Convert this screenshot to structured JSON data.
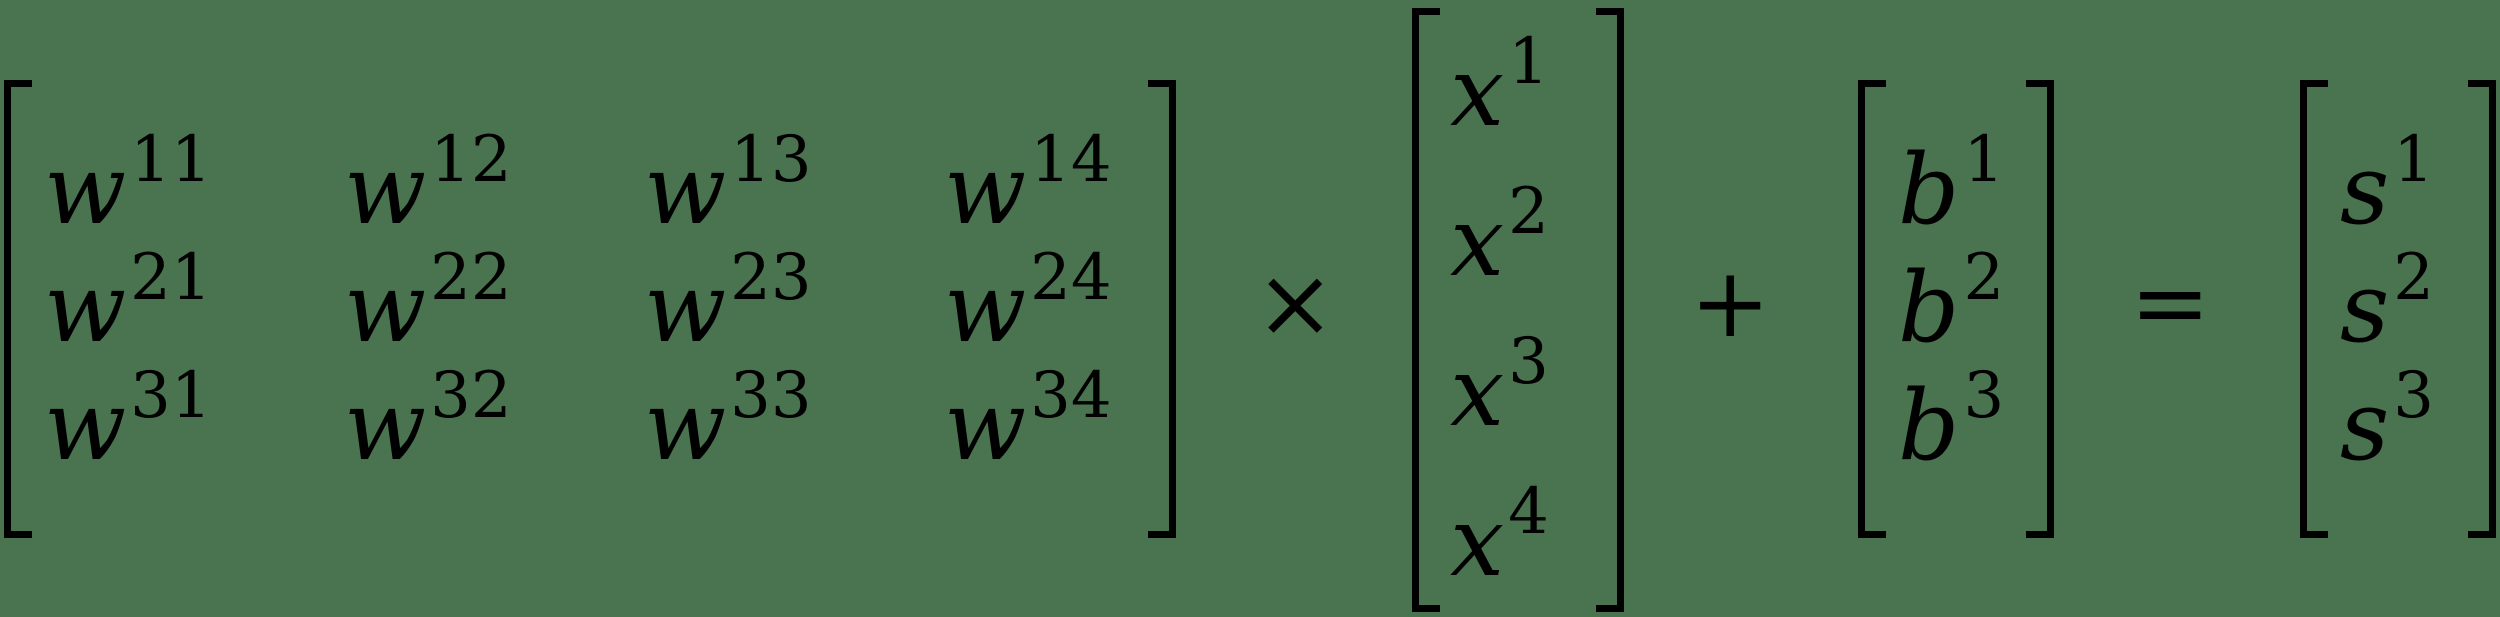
{
  "equation": {
    "weights": {
      "symbol": "w",
      "rows": [
        [
          "11",
          "12",
          "13",
          "14"
        ],
        [
          "21",
          "22",
          "23",
          "24"
        ],
        [
          "31",
          "32",
          "33",
          "34"
        ]
      ]
    },
    "times_operator": "×",
    "inputs": {
      "symbol": "x",
      "rows": [
        "1",
        "2",
        "3",
        "4"
      ]
    },
    "plus_operator": "+",
    "biases": {
      "symbol": "b",
      "rows": [
        "1",
        "2",
        "3"
      ]
    },
    "equals_operator": "=",
    "outputs": {
      "symbol": "s",
      "rows": [
        "1",
        "2",
        "3"
      ]
    }
  }
}
